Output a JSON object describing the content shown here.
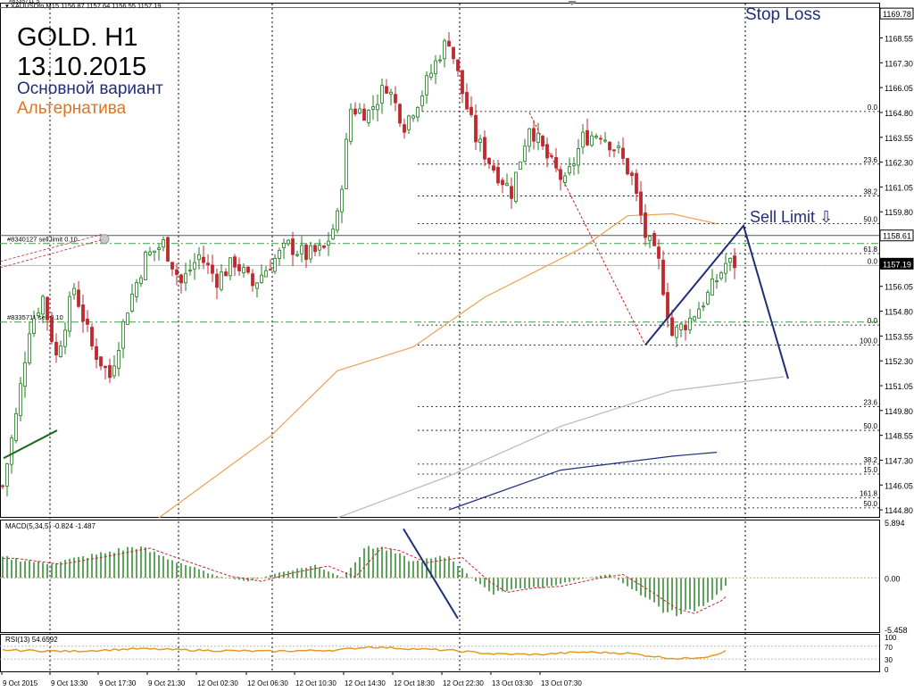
{
  "header": {
    "symbol_line": "XAUUSDfo,M15  1156.87 1157.64 1156.55 1157.19",
    "top_order_label": "#8335711 S"
  },
  "overlay": {
    "title_line1": "GOLD. H1",
    "title_line2": "13.10.2015",
    "main_variant": "Основной вариант",
    "alt_variant": "Альтернатива",
    "stop_loss": "Stop Loss",
    "sell_limit": "Sell Limit ⇩"
  },
  "colors": {
    "bull": "#1a7f1a",
    "bear": "#c0282f",
    "primary": "#1f2d7a",
    "alternative": "#d9742a",
    "ma_orange": "#f0a050",
    "ma_gray": "#b8b8b8",
    "ma_navy": "#1f2d7a",
    "order_green": "#3aa043",
    "grid": "#000000"
  },
  "orders": [
    {
      "label": "#8340127 sell limit 0.10",
      "price": 1158.61
    },
    {
      "label": "#8335711 sell 0.10",
      "price": 1154.25
    }
  ],
  "price_badges": [
    {
      "text": "1169.78",
      "price": 1169.78
    },
    {
      "text": "1158.61",
      "price": 1158.61
    },
    {
      "text": "1157.19",
      "price": 1157.19
    }
  ],
  "fib_levels": [
    {
      "text": "0.0",
      "price": 1164.85
    },
    {
      "text": "23.6",
      "price": 1162.2
    },
    {
      "text": "38.2",
      "price": 1160.6
    },
    {
      "text": "50.0",
      "price": 1159.2
    },
    {
      "text": "61.8",
      "price": 1157.7
    },
    {
      "text": "0.0",
      "price": 1157.1
    },
    {
      "text": "0.0",
      "price": 1154.1
    },
    {
      "text": "100.0",
      "price": 1153.1
    },
    {
      "text": "23.6",
      "price": 1150.0
    },
    {
      "text": "50.0",
      "price": 1148.8
    },
    {
      "text": "38.2",
      "price": 1147.1
    },
    {
      "text": "15.0",
      "price": 1146.6
    },
    {
      "text": "161.8",
      "price": 1145.4
    },
    {
      "text": "50.0",
      "price": 1144.9
    }
  ],
  "chart_data": [
    {
      "type": "candlestick",
      "title": "XAUUSDfo,M15",
      "xlabel": "",
      "ylabel": "",
      "ylim": [
        1144.4,
        1170.1
      ],
      "yticks": [
        "1168.55",
        "1167.30",
        "1166.05",
        "1164.80",
        "1163.55",
        "1162.30",
        "1161.05",
        "1159.80",
        "1158.55",
        "1157.30",
        "1156.05",
        "1154.80",
        "1153.55",
        "1152.30",
        "1151.05",
        "1149.80",
        "1148.55",
        "1147.30",
        "1146.05",
        "1144.80"
      ],
      "x_tick_labels": [
        "9 Oct 2015",
        "9 Oct 13:30",
        "9 Oct 17:30",
        "9 Oct 21:30",
        "12 Oct 02:30",
        "12 Oct 06:30",
        "12 Oct 10:30",
        "12 Oct 14:30",
        "12 Oct 18:30",
        "12 Oct 22:30",
        "13 Oct 03:30",
        "13 Oct 07:30"
      ],
      "series": [
        {
          "name": "XAUUSDfo",
          "approx_close_path": [
            [
              0,
              1146.0
            ],
            [
              3,
              1149.5
            ],
            [
              6,
              1154.0
            ],
            [
              9,
              1155.5
            ],
            [
              12,
              1152.5
            ],
            [
              16,
              1156.0
            ],
            [
              20,
              1153.0
            ],
            [
              24,
              1151.5
            ],
            [
              28,
              1155.0
            ],
            [
              32,
              1157.5
            ],
            [
              36,
              1158.2
            ],
            [
              40,
              1156.2
            ],
            [
              44,
              1157.6
            ],
            [
              48,
              1156.4
            ],
            [
              52,
              1157.3
            ],
            [
              56,
              1156.1
            ],
            [
              60,
              1157.2
            ],
            [
              64,
              1158.1
            ],
            [
              68,
              1157.6
            ],
            [
              72,
              1157.9
            ],
            [
              75,
              1159.5
            ],
            [
              78,
              1165.0
            ],
            [
              82,
              1164.8
            ],
            [
              86,
              1166.2
            ],
            [
              90,
              1164.2
            ],
            [
              94,
              1165.8
            ],
            [
              98,
              1167.8
            ],
            [
              100,
              1168.5
            ],
            [
              103,
              1165.8
            ],
            [
              106,
              1163.5
            ],
            [
              110,
              1162.0
            ],
            [
              114,
              1160.8
            ],
            [
              118,
              1164.2
            ],
            [
              122,
              1162.5
            ],
            [
              126,
              1161.2
            ],
            [
              130,
              1163.5
            ],
            [
              134,
              1163.8
            ],
            [
              138,
              1162.8
            ],
            [
              141,
              1161.5
            ],
            [
              144,
              1158.6
            ],
            [
              147,
              1157.2
            ],
            [
              150,
              1153.6
            ],
            [
              154,
              1154.4
            ],
            [
              158,
              1155.6
            ],
            [
              162,
              1157.19
            ]
          ]
        },
        {
          "name": "MA orange",
          "approx_path": [
            [
              35,
              1144.4
            ],
            [
              60,
              1148.5
            ],
            [
              75,
              1151.8
            ],
            [
              92,
              1153.0
            ],
            [
              108,
              1155.5
            ],
            [
              130,
              1158.0
            ],
            [
              140,
              1159.6
            ],
            [
              150,
              1159.7
            ],
            [
              160,
              1159.2
            ]
          ]
        },
        {
          "name": "MA gray",
          "approx_path": [
            [
              75,
              1144.4
            ],
            [
              100,
              1146.5
            ],
            [
              125,
              1149.0
            ],
            [
              150,
              1150.8
            ],
            [
              175,
              1151.5
            ]
          ]
        },
        {
          "name": "MA navy",
          "approx_path": [
            [
              100,
              1144.8
            ],
            [
              125,
              1146.8
            ],
            [
              150,
              1147.5
            ],
            [
              160,
              1147.7
            ]
          ]
        }
      ],
      "forecast_primary": [
        [
          144,
          1153.1
        ],
        [
          166,
          1159.1
        ],
        [
          176,
          1151.4
        ]
      ],
      "forecast_alternative": [
        [
          118,
          1164.8
        ],
        [
          144,
          1153.1
        ]
      ]
    },
    {
      "type": "bar",
      "title": "MACD(5,34,5) -0.824 -1.487",
      "ylim": [
        -5.458,
        5.894
      ],
      "yticks": [
        "5.894",
        "0.00",
        "-5.458"
      ],
      "approx_histogram_envelope": [
        [
          0,
          2.3
        ],
        [
          10,
          1.6
        ],
        [
          20,
          2.5
        ],
        [
          30,
          3.5
        ],
        [
          38,
          2.0
        ],
        [
          48,
          0.2
        ],
        [
          55,
          -0.4
        ],
        [
          62,
          0.6
        ],
        [
          70,
          1.4
        ],
        [
          76,
          0.1
        ],
        [
          82,
          3.6
        ],
        [
          86,
          3.2
        ],
        [
          92,
          1.8
        ],
        [
          100,
          2.4
        ],
        [
          106,
          -0.4
        ],
        [
          110,
          -1.7
        ],
        [
          116,
          -1.2
        ],
        [
          122,
          -1.0
        ],
        [
          130,
          -0.1
        ],
        [
          136,
          0.4
        ],
        [
          142,
          -1.5
        ],
        [
          148,
          -3.6
        ],
        [
          152,
          -4.2
        ],
        [
          158,
          -2.7
        ],
        [
          162,
          -0.82
        ]
      ]
    },
    {
      "type": "line",
      "title": "RSI(13) 54.6592",
      "ylim": [
        0,
        100
      ],
      "yticks": [
        "100",
        "70",
        "30",
        "0"
      ],
      "approx_path": [
        [
          0,
          58
        ],
        [
          15,
          54
        ],
        [
          30,
          62
        ],
        [
          45,
          57
        ],
        [
          60,
          54
        ],
        [
          75,
          58
        ],
        [
          82,
          68
        ],
        [
          90,
          63
        ],
        [
          100,
          57
        ],
        [
          110,
          46
        ],
        [
          120,
          44
        ],
        [
          130,
          52
        ],
        [
          140,
          48
        ],
        [
          148,
          35
        ],
        [
          152,
          31
        ],
        [
          158,
          38
        ],
        [
          162,
          54.66
        ]
      ]
    }
  ]
}
